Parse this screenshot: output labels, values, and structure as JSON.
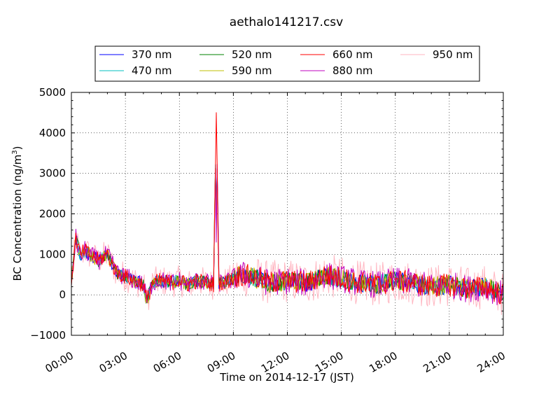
{
  "chart_data": {
    "type": "line",
    "title": "aethalo141217.csv",
    "xlabel": "Time on 2014-12-17 (JST)",
    "ylabel_main": "BC Concentration (ng/m",
    "ylabel_sup": "3",
    "ylabel_tail": ")",
    "x_ticks": [
      "00:00",
      "03:00",
      "06:00",
      "09:00",
      "12:00",
      "15:00",
      "18:00",
      "21:00",
      "24:00"
    ],
    "xlim_hours": [
      0,
      24
    ],
    "y_ticks": [
      "5000",
      "4000",
      "3000",
      "2000",
      "1000",
      "0",
      "−1000"
    ],
    "y_tick_values": [
      5000,
      4000,
      3000,
      2000,
      1000,
      0,
      -1000
    ],
    "ylim": [
      -1000,
      5000
    ],
    "grid": true,
    "legend_position": "top",
    "series": [
      {
        "name": "370 nm",
        "color": "#0000ff"
      },
      {
        "name": "470 nm",
        "color": "#00bfbf"
      },
      {
        "name": "520 nm",
        "color": "#008000"
      },
      {
        "name": "590 nm",
        "color": "#bfbf00"
      },
      {
        "name": "660 nm",
        "color": "#ff0000"
      },
      {
        "name": "880 nm",
        "color": "#bf00bf"
      },
      {
        "name": "950 nm",
        "color": "#ffb6c1"
      }
    ],
    "approx_time_hours": [
      0,
      0.25,
      0.5,
      0.75,
      1,
      1.5,
      2,
      2.5,
      3,
      3.5,
      4,
      4.2,
      4.5,
      5,
      5.5,
      6,
      6.5,
      7,
      7.5,
      7.9,
      8.05,
      8.2,
      8.5,
      9,
      9.5,
      10,
      11,
      12,
      13,
      13.5,
      14,
      15,
      16,
      17,
      18,
      19,
      20,
      21,
      22,
      23,
      24
    ],
    "approx_level_ngm3": [
      350,
      1400,
      950,
      1100,
      1000,
      850,
      1000,
      550,
      450,
      350,
      250,
      -150,
      300,
      350,
      300,
      350,
      250,
      350,
      300,
      250,
      4500,
      300,
      300,
      400,
      500,
      450,
      300,
      350,
      300,
      350,
      500,
      400,
      300,
      250,
      350,
      300,
      200,
      250,
      150,
      200,
      0
    ]
  }
}
